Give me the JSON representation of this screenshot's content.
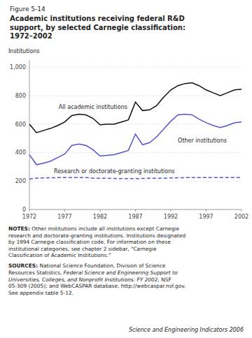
{
  "chart_data": {
    "type": "line",
    "figure_number": "Figure 5-14",
    "title": "Academic institutions receiving federal R&D\nsupport, by selected Carnegie classification:\n1972–2002",
    "y_label": "Institutions",
    "x": [
      1972,
      1973,
      1974,
      1975,
      1976,
      1977,
      1978,
      1979,
      1980,
      1981,
      1982,
      1983,
      1984,
      1985,
      1986,
      1987,
      1988,
      1989,
      1990,
      1991,
      1992,
      1993,
      1994,
      1995,
      1996,
      1997,
      1998,
      1999,
      2000,
      2001,
      2002
    ],
    "series": [
      {
        "label": "All academic institutions",
        "color": "#111111",
        "line_style": "solid",
        "values": [
          600,
          540,
          555,
          570,
          590,
          615,
          660,
          670,
          665,
          640,
          595,
          600,
          600,
          615,
          630,
          755,
          695,
          700,
          730,
          790,
          840,
          870,
          885,
          890,
          870,
          840,
          820,
          800,
          820,
          840,
          845
        ]
      },
      {
        "label": "Other institutions",
        "color": "#5555cc",
        "line_style": "solid",
        "values": [
          385,
          315,
          325,
          340,
          365,
          390,
          450,
          460,
          450,
          420,
          375,
          380,
          385,
          400,
          415,
          530,
          455,
          470,
          510,
          565,
          620,
          665,
          670,
          665,
          635,
          610,
          590,
          575,
          590,
          610,
          615
        ]
      },
      {
        "label": "Research or doctorate-granting institutions",
        "color": "#5555cc",
        "line_style": "dashed",
        "values": [
          215,
          220,
          222,
          223,
          224,
          225,
          225,
          224,
          225,
          220,
          220,
          220,
          218,
          217,
          217,
          217,
          218,
          220,
          220,
          220,
          222,
          223,
          224,
          225,
          225,
          225,
          225,
          225,
          225,
          225,
          225
        ]
      }
    ],
    "xlim": [
      1972,
      2002
    ],
    "xticks": [
      1972,
      1977,
      1982,
      1987,
      1992,
      1997,
      2002
    ],
    "ylim": [
      0,
      1050
    ],
    "yticks": [
      0,
      200,
      400,
      600,
      800,
      {
        "value": 1000,
        "label": "1,000"
      }
    ],
    "grid": true,
    "notes_heading": "NOTES:",
    "notes": " Other institutions include all institutions except Carnegie\nresearch and doctorate-granting institutions. Institutions designated\nby 1994 Carnegie classification code. For information on these\ninstitutional categories, see chapter 2 sidebar, “Carnegie\nClassification of Academic Institutions.”",
    "sources_heading": "SOURCES:",
    "sources": " National Science Foundation, Division of Science\nResources Statistics, ",
    "sources_title": "Federal Science and Engineering Support to\nUniversities, Colleges, and Nonprofit Institutions: FY 2002,",
    "sources_end": " NSF\n05-309 (2005); and WebCASPAR database, http://webcaspar.nsf.gov.\nSee appendix table 5-12.",
    "footer": "Science and Engineering Indicators 2006"
  }
}
